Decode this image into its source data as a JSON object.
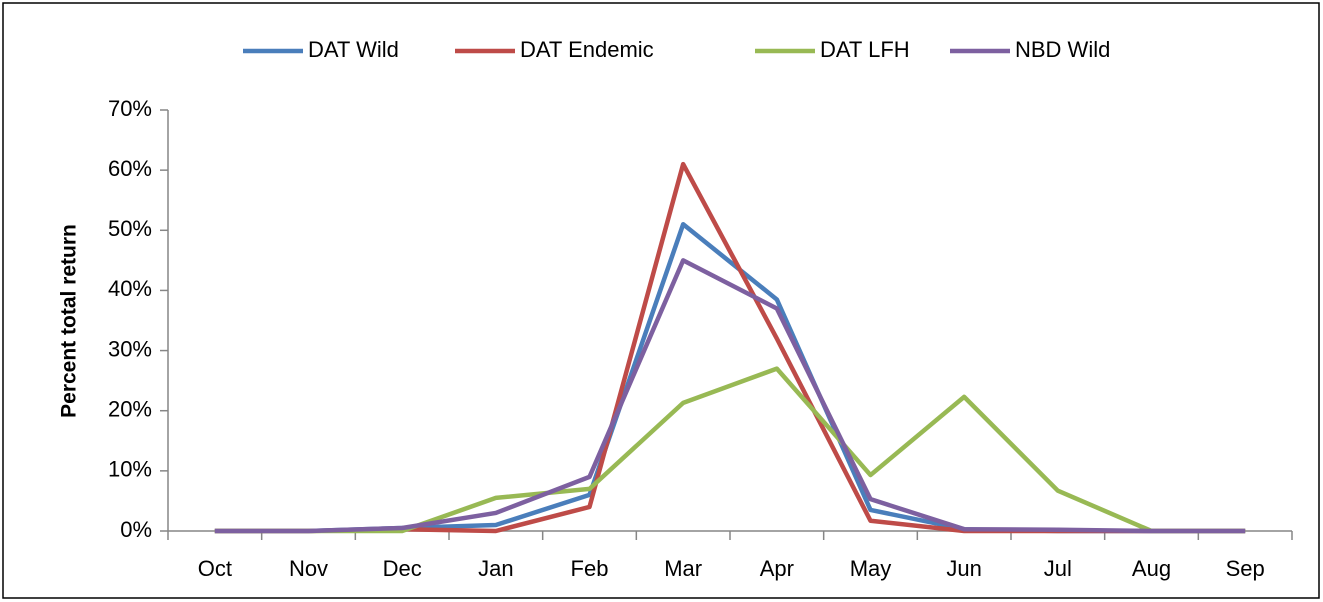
{
  "chart_data": {
    "type": "line",
    "y_label": "Percent total return",
    "categories": [
      "Oct",
      "Nov",
      "Dec",
      "Jan",
      "Feb",
      "Mar",
      "Apr",
      "May",
      "Jun",
      "Jul",
      "Aug",
      "Sep"
    ],
    "series": [
      {
        "name": "DAT Wild",
        "color": "#4a7ebb",
        "values": [
          0,
          0,
          0.5,
          1,
          6,
          51,
          38.5,
          3.5,
          0.3,
          0,
          0,
          0
        ]
      },
      {
        "name": "DAT Endemic",
        "color": "#be4b48",
        "values": [
          0,
          0,
          0.3,
          0,
          4,
          61,
          32,
          1.7,
          0,
          0,
          0,
          0
        ]
      },
      {
        "name": "DAT LFH",
        "color": "#98b954",
        "values": [
          0,
          0,
          0,
          5.5,
          7,
          21.3,
          27,
          9.3,
          22.3,
          6.7,
          0,
          0
        ]
      },
      {
        "name": "NBD Wild",
        "color": "#7d60a0",
        "values": [
          0,
          0,
          0.5,
          3,
          9,
          45,
          37,
          5.3,
          0.3,
          0.2,
          0,
          0
        ]
      }
    ],
    "ylim": [
      0,
      70
    ],
    "yticks": [
      {
        "value": 0,
        "label": "0%"
      },
      {
        "value": 10,
        "label": "10%"
      },
      {
        "value": 20,
        "label": "20%"
      },
      {
        "value": 30,
        "label": "30%"
      },
      {
        "value": 40,
        "label": "40%"
      },
      {
        "value": 50,
        "label": "50%"
      },
      {
        "value": 60,
        "label": "60%"
      },
      {
        "value": 70,
        "label": "70%"
      }
    ],
    "grid": false,
    "legend": "top"
  }
}
